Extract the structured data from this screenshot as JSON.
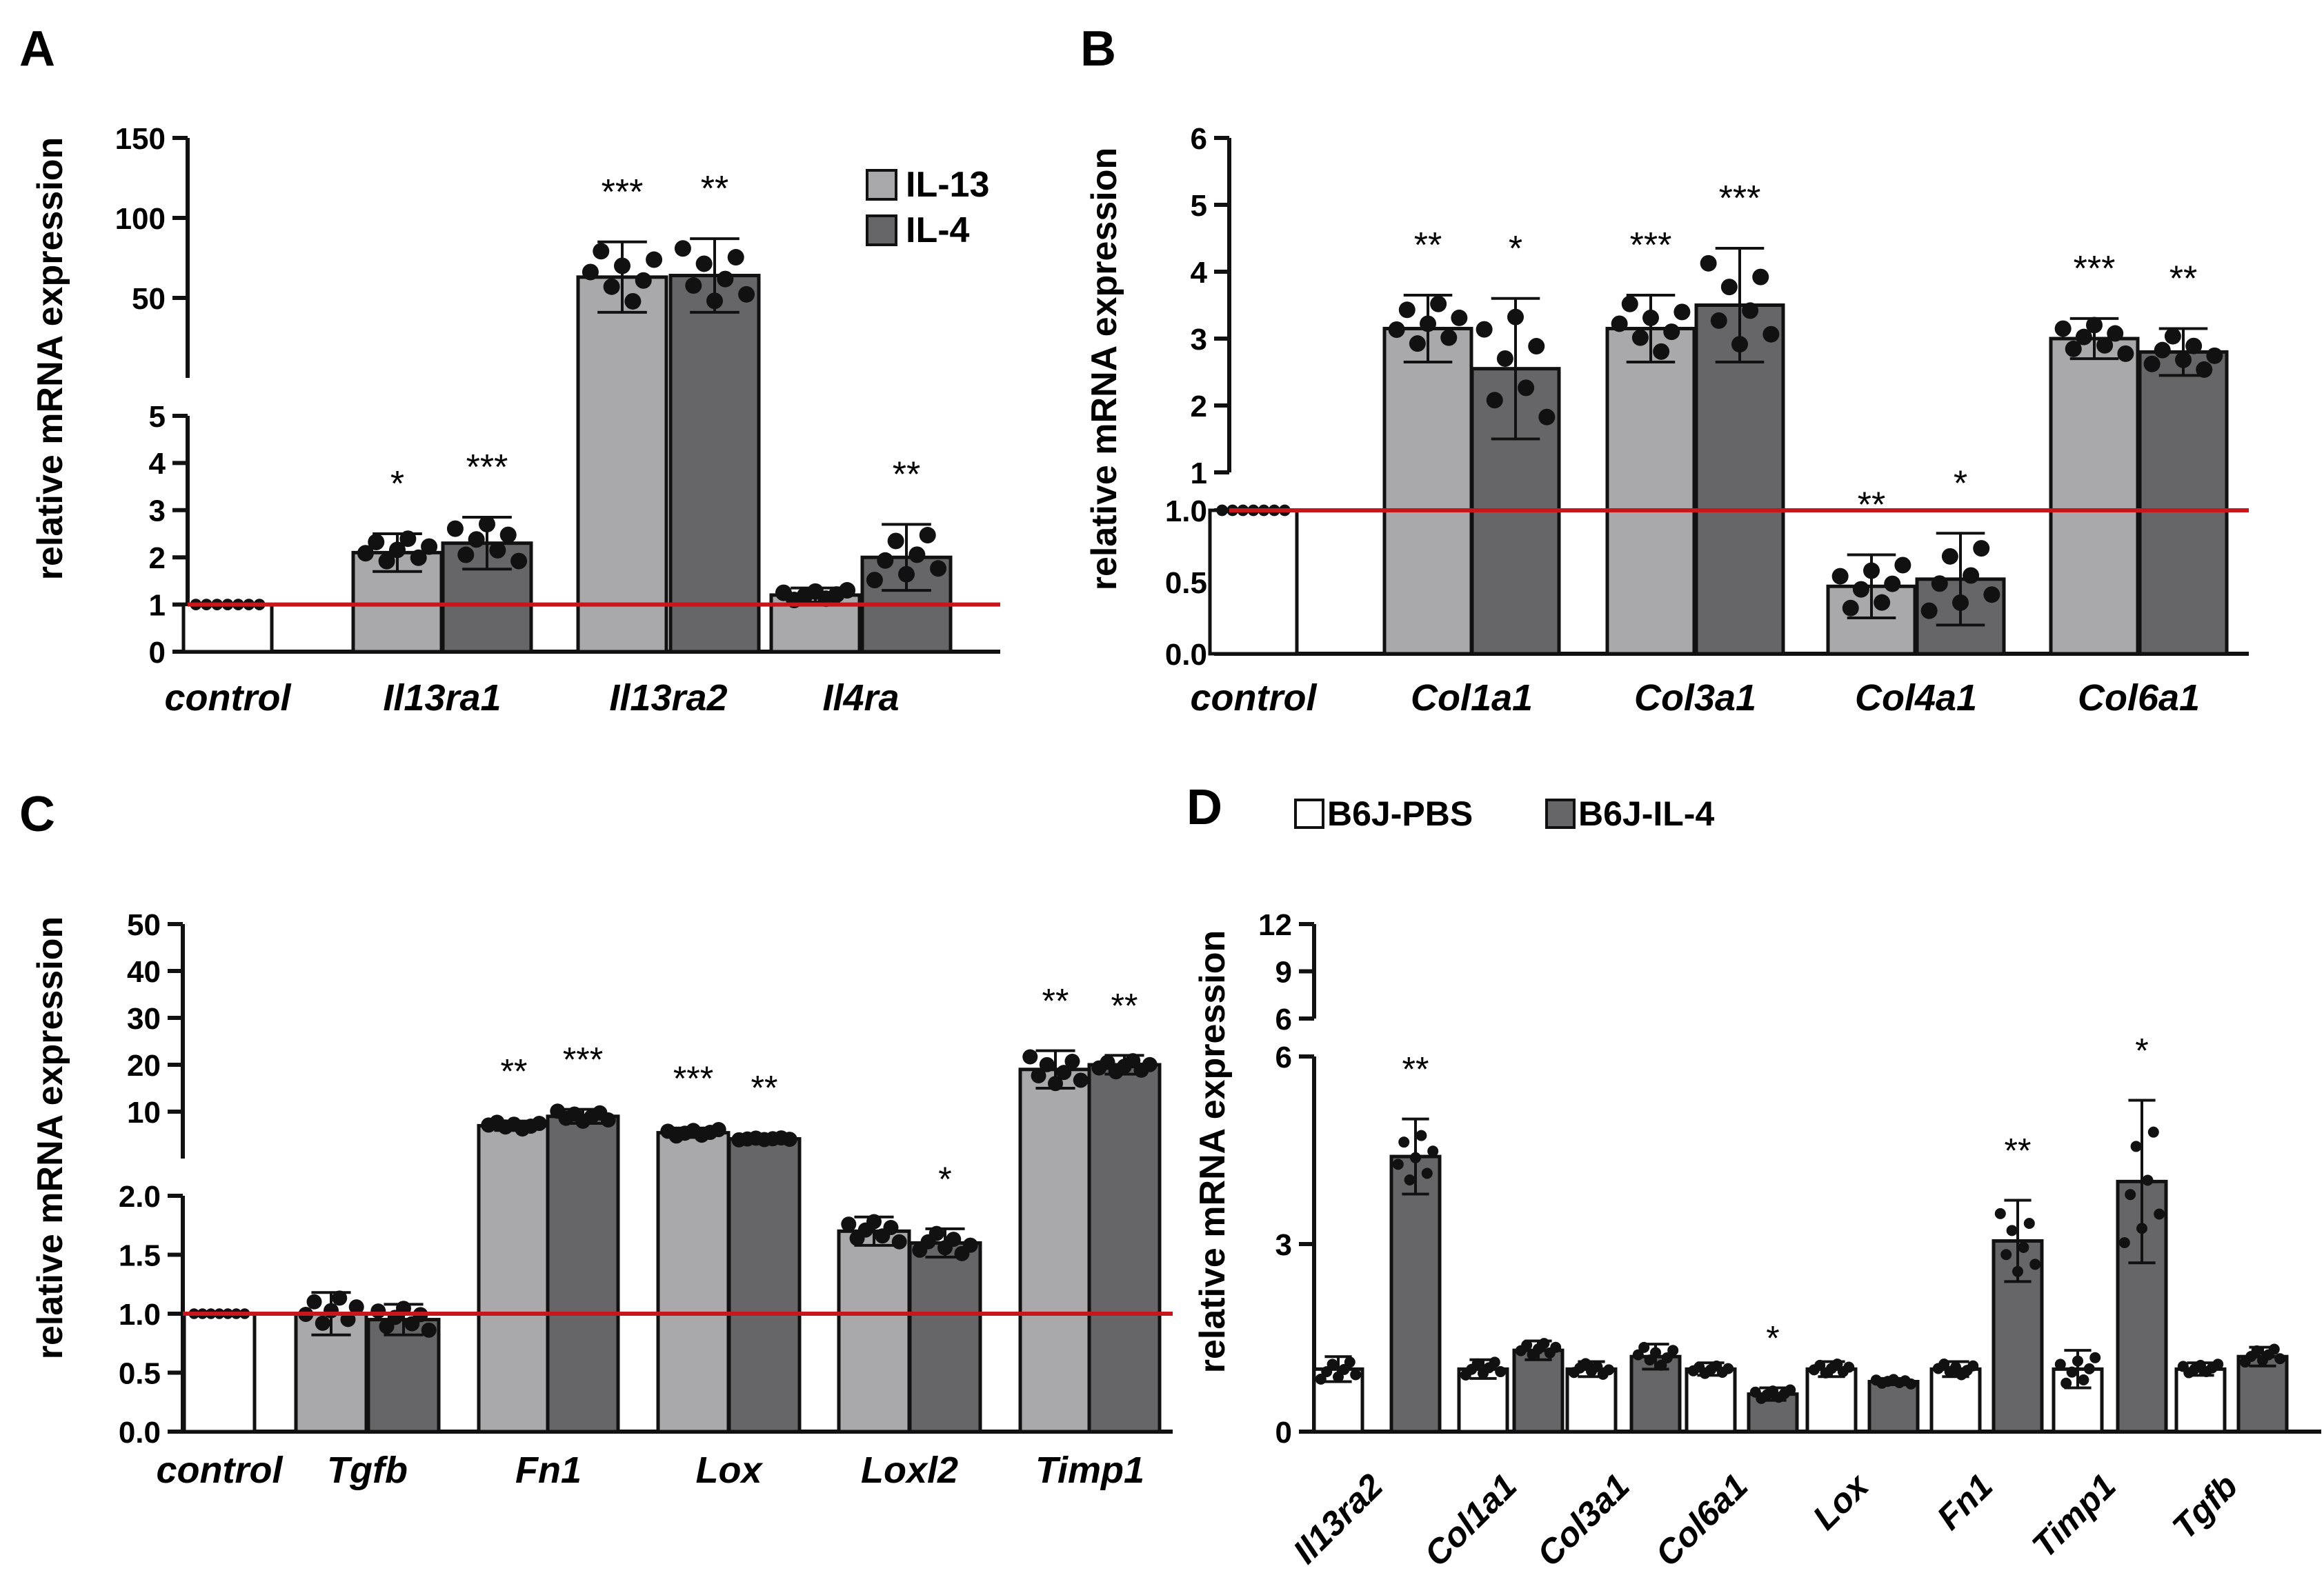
{
  "colors": {
    "il13": "#a9a9ab",
    "il4": "#666668",
    "control": "#ffffff",
    "redline": "#c8161d",
    "axis": "#111111"
  },
  "chart_data": [
    {
      "panel": "A",
      "type": "bar",
      "ylabel": "relative mRNA expression",
      "axis_segments": [
        {
          "range": [
            0,
            5
          ],
          "ticks": [
            "0",
            "1",
            "2",
            "3",
            "4",
            "5"
          ]
        },
        {
          "range": [
            0,
            150
          ],
          "ticks": [
            "50",
            "100",
            "150"
          ]
        }
      ],
      "reference_line": 1,
      "legend": [
        "IL-13",
        "IL-4"
      ],
      "categories": [
        "control",
        "Il13ra1",
        "Il13ra2",
        "Il4ra"
      ],
      "series": [
        {
          "name": "control",
          "values": [
            1,
            null,
            null,
            null
          ],
          "errors": [
            0,
            null,
            null,
            null
          ]
        },
        {
          "name": "IL-13",
          "values": [
            null,
            2.1,
            63,
            1.2
          ],
          "errors": [
            null,
            0.4,
            22,
            0.15
          ],
          "significance": [
            null,
            "*",
            "***",
            null
          ]
        },
        {
          "name": "IL-4",
          "values": [
            null,
            2.3,
            64,
            2.0
          ],
          "errors": [
            null,
            0.55,
            23,
            0.7
          ],
          "significance": [
            null,
            "***",
            "**",
            "**"
          ]
        }
      ]
    },
    {
      "panel": "B",
      "type": "bar",
      "ylabel": "relative mRNA expression",
      "axis_segments": [
        {
          "range": [
            0,
            1.0
          ],
          "ticks": [
            "0.0",
            "0.5",
            "1.0"
          ]
        },
        {
          "range": [
            1,
            6
          ],
          "ticks": [
            "1",
            "2",
            "3",
            "4",
            "5",
            "6"
          ]
        }
      ],
      "reference_line": 1,
      "categories": [
        "control",
        "Col1a1",
        "Col3a1",
        "Col4a1",
        "Col6a1"
      ],
      "series": [
        {
          "name": "control",
          "values": [
            1,
            null,
            null,
            null,
            null
          ],
          "errors": [
            0,
            null,
            null,
            null,
            null
          ]
        },
        {
          "name": "IL-13",
          "values": [
            null,
            3.15,
            3.15,
            0.47,
            3.0
          ],
          "errors": [
            null,
            0.5,
            0.5,
            0.22,
            0.3
          ],
          "significance": [
            null,
            "**",
            "***",
            "**",
            "***"
          ]
        },
        {
          "name": "IL-4",
          "values": [
            null,
            2.55,
            3.5,
            0.52,
            2.8
          ],
          "errors": [
            null,
            1.05,
            0.85,
            0.32,
            0.35
          ],
          "significance": [
            null,
            "*",
            "***",
            "*",
            "**"
          ]
        }
      ]
    },
    {
      "panel": "C",
      "type": "bar",
      "ylabel": "relative mRNA expression",
      "axis_segments": [
        {
          "range": [
            0,
            2.0
          ],
          "ticks": [
            "0.0",
            "0.5",
            "1.0",
            "1.5",
            "2.0"
          ]
        },
        {
          "range": [
            0,
            50
          ],
          "ticks": [
            "10",
            "20",
            "30",
            "40",
            "50"
          ]
        }
      ],
      "reference_line": 1,
      "categories": [
        "control",
        "Tgfb",
        "Fn1",
        "Lox",
        "Loxl2",
        "Timp1"
      ],
      "series": [
        {
          "name": "control",
          "values": [
            1,
            null,
            null,
            null,
            null,
            null
          ],
          "errors": [
            0,
            null,
            null,
            null,
            null,
            null
          ]
        },
        {
          "name": "IL-13",
          "values": [
            null,
            1.0,
            7.0,
            5.5,
            1.7,
            19
          ],
          "errors": [
            null,
            0.18,
            1.0,
            1.0,
            0.12,
            4
          ],
          "significance": [
            null,
            null,
            "**",
            "***",
            null,
            "**"
          ]
        },
        {
          "name": "IL-4",
          "values": [
            null,
            0.95,
            9.0,
            4.2,
            1.6,
            20
          ],
          "errors": [
            null,
            0.13,
            1.5,
            0.3,
            0.12,
            2
          ],
          "significance": [
            null,
            null,
            "***",
            "**",
            "*",
            "**"
          ]
        }
      ]
    },
    {
      "panel": "D",
      "type": "bar",
      "ylabel": "relative mRNA expression",
      "axis_segments": [
        {
          "range": [
            0,
            6
          ],
          "ticks": [
            "0",
            "3",
            "6"
          ]
        },
        {
          "range": [
            6,
            12
          ],
          "ticks": [
            "6",
            "9",
            "12"
          ]
        }
      ],
      "legend": [
        "B6J-PBS",
        "B6J-IL-4"
      ],
      "categories": [
        "Il13ra2",
        "Col1a1",
        "Col3a1",
        "Col6a1",
        "Lox",
        "Fn1",
        "Timp1",
        "Tgfb"
      ],
      "series": [
        {
          "name": "B6J-PBS",
          "values": [
            1.0,
            1.0,
            1.0,
            1.0,
            1.0,
            1.0,
            1.0,
            1.0
          ],
          "errors": [
            0.2,
            0.15,
            0.12,
            0.1,
            0.12,
            0.12,
            0.3,
            0.1
          ]
        },
        {
          "name": "B6J-IL-4",
          "values": [
            4.4,
            1.3,
            1.2,
            0.6,
            0.8,
            3.05,
            4.0,
            1.2
          ],
          "errors": [
            0.6,
            0.15,
            0.2,
            0.1,
            0.05,
            0.65,
            1.3,
            0.15
          ],
          "significance": [
            "**",
            null,
            null,
            "*",
            null,
            "**",
            "*",
            null
          ]
        }
      ]
    }
  ],
  "panel_labels": [
    "A",
    "B",
    "C",
    "D"
  ]
}
